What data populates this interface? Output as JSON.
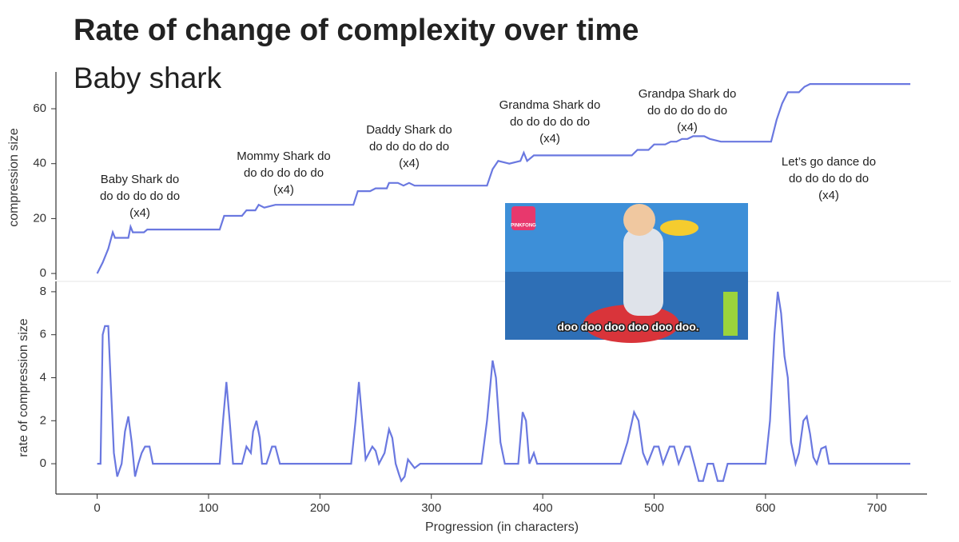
{
  "title": "Rate of change of complexity over time",
  "subtitle": "Baby shark",
  "image": {
    "logo": "PINKFONG",
    "caption": "doo doo doo doo doo doo."
  },
  "chart_data": [
    {
      "type": "line",
      "ylabel": "compression size",
      "color": "#6a78e0",
      "xlim": [
        -37,
        745
      ],
      "ylim": [
        -2.3,
        73.4
      ],
      "yticks": [
        0,
        20,
        40,
        60
      ],
      "annotations": [
        [
          "Baby Shark do",
          "do do do do do",
          "(x4)"
        ],
        [
          "Mommy Shark do",
          "do do do do do",
          "(x4)"
        ],
        [
          "Daddy Shark do",
          "do do do do do",
          "(x4)"
        ],
        [
          "Grandma Shark do",
          "do do do do do",
          "(x4)"
        ],
        [
          "Grandpa Shark do",
          "do do do do do",
          "(x4)"
        ],
        [
          "Let’s go dance do",
          "do do do do do",
          "(x4)"
        ]
      ],
      "x": [
        0,
        5,
        10,
        14,
        16,
        28,
        30,
        32,
        42,
        45,
        110,
        114,
        130,
        134,
        142,
        145,
        150,
        160,
        230,
        234,
        245,
        250,
        260,
        262,
        270,
        275,
        280,
        285,
        350,
        355,
        360,
        370,
        380,
        383,
        386,
        392,
        480,
        485,
        495,
        500,
        510,
        515,
        520,
        525,
        530,
        535,
        545,
        550,
        560,
        605,
        610,
        615,
        620,
        630,
        635,
        640,
        730
      ],
      "values": [
        0,
        4,
        9,
        15,
        13,
        13,
        17,
        15,
        15,
        16,
        16,
        21,
        21,
        23,
        23,
        25,
        24,
        25,
        25,
        30,
        30,
        31,
        31,
        33,
        33,
        32,
        33,
        32,
        32,
        38,
        41,
        40,
        41,
        44,
        41,
        43,
        43,
        45,
        45,
        47,
        47,
        48,
        48,
        49,
        49,
        50,
        50,
        49,
        48,
        48,
        56,
        62,
        66,
        66,
        68,
        69,
        69
      ]
    },
    {
      "type": "line",
      "ylabel": "rate of compression size",
      "xlabel": "Progression (in characters)",
      "color": "#6a78e0",
      "xlim": [
        -37,
        745
      ],
      "ylim": [
        -1.41,
        8.48
      ],
      "yticks": [
        0,
        2,
        4,
        6,
        8
      ],
      "xticks": [
        0,
        100,
        200,
        300,
        400,
        500,
        600,
        700
      ],
      "x": [
        0,
        3,
        5,
        7,
        10,
        12,
        15,
        18,
        22,
        25,
        28,
        31,
        34,
        37,
        40,
        43,
        47,
        50,
        110,
        113,
        116,
        119,
        122,
        130,
        134,
        138,
        140,
        143,
        146,
        148,
        152,
        157,
        160,
        164,
        228,
        232,
        235,
        238,
        241,
        244,
        247,
        250,
        253,
        258,
        262,
        265,
        268,
        271,
        273,
        276,
        279,
        282,
        285,
        290,
        345,
        350,
        355,
        358,
        362,
        366,
        378,
        382,
        385,
        388,
        392,
        395,
        470,
        476,
        482,
        486,
        490,
        494,
        500,
        504,
        508,
        514,
        518,
        522,
        528,
        532,
        536,
        540,
        544,
        548,
        553,
        557,
        562,
        566,
        600,
        604,
        608,
        611,
        614,
        617,
        620,
        623,
        627,
        630,
        634,
        637,
        640,
        643,
        646,
        650,
        654,
        657,
        730
      ],
      "values": [
        0,
        0,
        6,
        6.4,
        6.4,
        4,
        0.5,
        -0.6,
        0,
        1.5,
        2.2,
        1,
        -0.6,
        0,
        0.5,
        0.8,
        0.8,
        0,
        0,
        2,
        3.8,
        2,
        0,
        0,
        0.8,
        0.5,
        1.5,
        2,
        1.2,
        0,
        0,
        0.8,
        0.8,
        0,
        0,
        2,
        3.8,
        2,
        0.2,
        0.5,
        0.8,
        0.6,
        0,
        0.5,
        1.6,
        1.2,
        0,
        -0.5,
        -0.8,
        -0.6,
        0.2,
        0,
        -0.2,
        0,
        0,
        2,
        4.8,
        4,
        1,
        0,
        0,
        2.4,
        2,
        0,
        0.5,
        0,
        0,
        1,
        2.4,
        2,
        0.5,
        0,
        0.8,
        0.8,
        0,
        0.8,
        0.8,
        0,
        0.8,
        0.8,
        0,
        -0.8,
        -0.8,
        0,
        0,
        -0.8,
        -0.8,
        0,
        0,
        2,
        6,
        8,
        7,
        5,
        4,
        1,
        0,
        0.5,
        2,
        2.2,
        1.4,
        0.3,
        0,
        0.7,
        0.8,
        0,
        0
      ]
    }
  ]
}
